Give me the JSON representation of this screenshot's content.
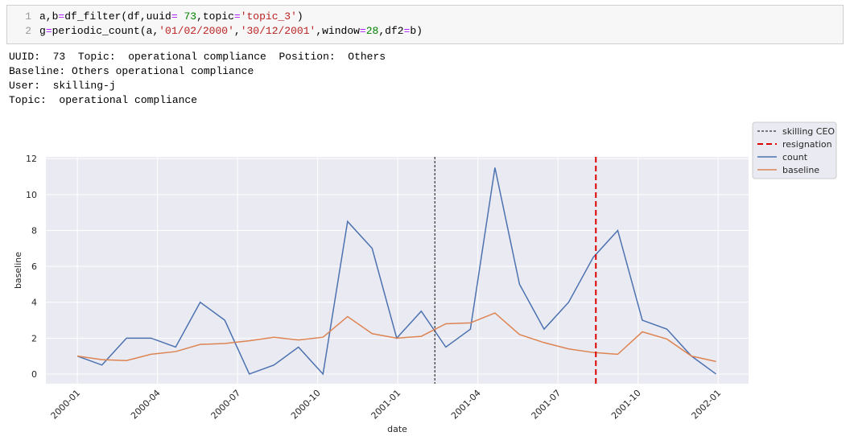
{
  "code": {
    "line_numbers": [
      1,
      2
    ],
    "lines": [
      [
        "a,b",
        "=",
        "df_filter(df,uuid",
        "= ",
        "73",
        ",topic",
        "=",
        "'topic_3'",
        ")"
      ],
      [
        "g",
        "=",
        "periodic_count(a,",
        "'01/02/2000'",
        ",",
        "'30/12/2001'",
        ",window",
        "=",
        "28",
        ",df2",
        "=",
        "b)"
      ]
    ]
  },
  "output": [
    "UUID:  73  Topic:  operational compliance  Position:  Others",
    "Baseline: Others operational compliance",
    "User:  skilling-j",
    "Topic:  operational compliance"
  ],
  "chart_data": {
    "type": "line",
    "x_label": "date",
    "y_label": "baseline",
    "x": [
      0,
      0.92,
      1.84,
      2.76,
      3.68,
      4.6,
      5.52,
      6.44,
      7.36,
      8.28,
      9.2,
      10.12,
      11.04,
      11.96,
      12.88,
      13.8,
      14.72,
      15.64,
      16.56,
      17.48,
      18.4,
      19.32,
      20.24,
      21.16,
      22.08,
      23,
      23.92
    ],
    "series": [
      {
        "name": "count",
        "color": "#4c72b0",
        "values": [
          1,
          0.5,
          2,
          2,
          1.5,
          4,
          3,
          0,
          0.5,
          1.5,
          0,
          8.5,
          7,
          2,
          3.5,
          1.5,
          2.5,
          11.5,
          5,
          2.5,
          4,
          6.5,
          8,
          3,
          2.5,
          1,
          0
        ]
      },
      {
        "name": "baseline",
        "color": "#dd8452",
        "values": [
          1.0,
          0.8,
          0.75,
          1.1,
          1.25,
          1.65,
          1.7,
          1.85,
          2.05,
          1.9,
          2.05,
          3.2,
          2.25,
          2.0,
          2.1,
          2.8,
          2.85,
          3.4,
          2.2,
          1.75,
          1.4,
          1.2,
          1.1,
          2.35,
          1.95,
          1.0,
          0.7
        ]
      }
    ],
    "vlines": [
      {
        "name": "skilling CEO",
        "x": 13.39,
        "color": "#333333",
        "dash": "3,2"
      },
      {
        "name": "resignation",
        "x": 19.42,
        "color": "#dd0000",
        "dash": "7,4"
      }
    ],
    "xlim": [
      -1.18,
      25.14
    ],
    "ylim": [
      -0.54,
      12.1
    ],
    "xticks": [
      {
        "value": 0,
        "label": "2000-01"
      },
      {
        "value": 3,
        "label": "2000-04"
      },
      {
        "value": 6,
        "label": "2000-07"
      },
      {
        "value": 9,
        "label": "2000-10"
      },
      {
        "value": 12,
        "label": "2001-01"
      },
      {
        "value": 15,
        "label": "2001-04"
      },
      {
        "value": 18,
        "label": "2001-07"
      },
      {
        "value": 21,
        "label": "2001-10"
      },
      {
        "value": 24,
        "label": "2002-01"
      }
    ],
    "yticks": [
      0,
      2,
      4,
      6,
      8,
      10,
      12
    ],
    "grid": true,
    "legend": "outside-upper-right"
  }
}
